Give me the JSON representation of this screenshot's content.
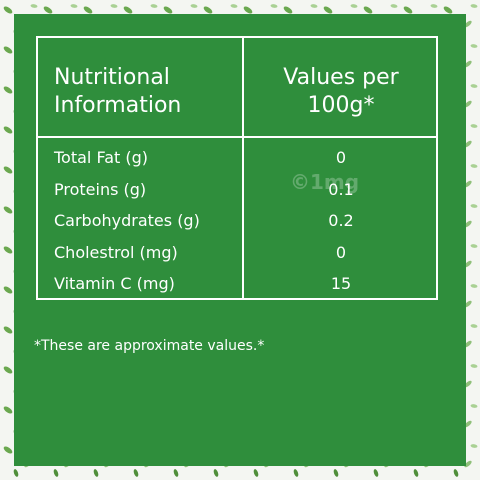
{
  "table": {
    "headers": [
      "Nutritional Information",
      "Values per 100g*"
    ],
    "rows": [
      [
        "Total Fat (g)",
        "0"
      ],
      [
        "Proteins (g)",
        "0.1"
      ],
      [
        "Carbohydrates (g)",
        "0.2"
      ],
      [
        "Cholestrol (mg)",
        "0"
      ],
      [
        "Vitamin C (mg)",
        "15"
      ]
    ]
  },
  "watermark": "©1mg",
  "footnote": "*These are approximate values.*"
}
